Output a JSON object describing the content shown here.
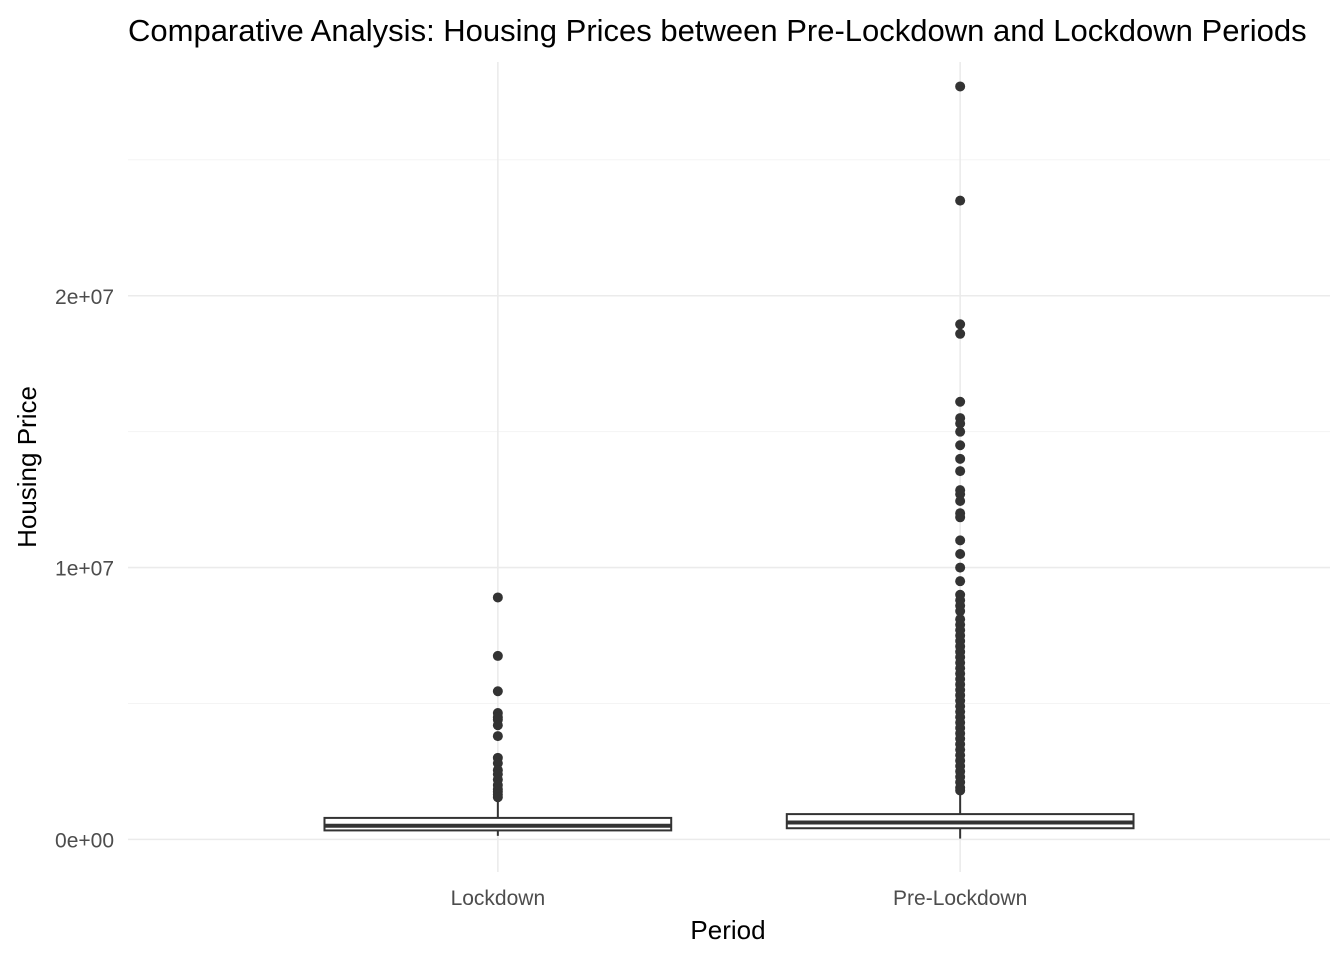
{
  "chart_data": {
    "type": "box",
    "title": "Comparative Analysis: Housing Prices between Pre-Lockdown and Lockdown Periods",
    "xlabel": "Period",
    "ylabel": "Housing Price",
    "categories": [
      "Lockdown",
      "Pre-Lockdown"
    ],
    "ylim": [
      -1200000,
      28600000
    ],
    "y_ticks": [
      {
        "value": 0,
        "label": "0e+00"
      },
      {
        "value": 10000000,
        "label": "1e+07"
      },
      {
        "value": 20000000,
        "label": "2e+07"
      }
    ],
    "y_minor_ticks": [
      5000000,
      15000000,
      25000000
    ],
    "grid": true,
    "legend": "none",
    "boxes": [
      {
        "category": "Lockdown",
        "whisker_low": 130000,
        "q1": 330000,
        "median": 500000,
        "q3": 790000,
        "whisker_high": 1450000,
        "outliers": [
          8900000,
          6750000,
          5450000,
          4650000,
          4500000,
          4400000,
          4200000,
          3800000,
          3000000,
          2800000,
          2550000,
          2400000,
          2200000,
          2000000,
          1850000,
          1750000,
          1650000,
          1550000
        ]
      },
      {
        "category": "Pre-Lockdown",
        "whisker_low": 30000,
        "q1": 410000,
        "median": 620000,
        "q3": 930000,
        "whisker_high": 1700000,
        "outliers": [
          27700000,
          23500000,
          18950000,
          18600000,
          16100000,
          15500000,
          15300000,
          15000000,
          14500000,
          14000000,
          13550000,
          12850000,
          12700000,
          12450000,
          12000000,
          11850000,
          11000000,
          10500000,
          10000000,
          9500000,
          9000000,
          8800000,
          8600000,
          8400000,
          8100000,
          7900000,
          7700000,
          7500000,
          7300000,
          7100000,
          6900000,
          6700000,
          6500000,
          6300000,
          6100000,
          5900000,
          5700000,
          5500000,
          5300000,
          5100000,
          4900000,
          4700000,
          4500000,
          4300000,
          4100000,
          3900000,
          3700000,
          3500000,
          3300000,
          3100000,
          2900000,
          2700000,
          2500000,
          2300000,
          2100000,
          1900000,
          1800000
        ]
      }
    ]
  }
}
